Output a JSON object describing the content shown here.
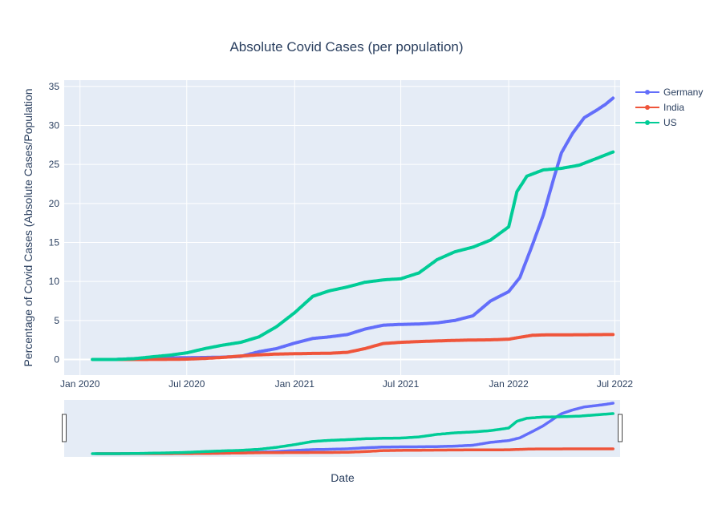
{
  "chart_data": {
    "type": "line",
    "title": "Absolute Covid Cases (per population)",
    "xlabel": "Date",
    "ylabel": "Percentage of Covid Cases (Absolute Cases/Population",
    "x_ticks": [
      "Jan 2020",
      "Jul 2020",
      "Jan 2021",
      "Jul 2021",
      "Jan 2022",
      "Jul 2022"
    ],
    "y_ticks": [
      "0",
      "5",
      "10",
      "15",
      "20",
      "25",
      "30",
      "35"
    ],
    "ylim": [
      -2,
      35.8
    ],
    "xlim": [
      "2019-12-05",
      "2022-07-10"
    ],
    "grid": true,
    "legend_position": "top-right",
    "rangeslider": true,
    "series": [
      {
        "name": "Germany",
        "color": "#636efa",
        "points": [
          [
            "2020-01-27",
            0
          ],
          [
            "2020-03-01",
            0
          ],
          [
            "2020-04-01",
            0.1
          ],
          [
            "2020-05-01",
            0.2
          ],
          [
            "2020-06-01",
            0.2
          ],
          [
            "2020-07-01",
            0.24
          ],
          [
            "2020-08-01",
            0.26
          ],
          [
            "2020-09-01",
            0.3
          ],
          [
            "2020-10-01",
            0.4
          ],
          [
            "2020-11-01",
            1.0
          ],
          [
            "2020-12-01",
            1.4
          ],
          [
            "2021-01-01",
            2.1
          ],
          [
            "2021-02-01",
            2.7
          ],
          [
            "2021-03-01",
            2.9
          ],
          [
            "2021-04-01",
            3.2
          ],
          [
            "2021-05-01",
            3.9
          ],
          [
            "2021-06-01",
            4.4
          ],
          [
            "2021-07-01",
            4.5
          ],
          [
            "2021-08-01",
            4.55
          ],
          [
            "2021-09-01",
            4.7
          ],
          [
            "2021-10-01",
            5.0
          ],
          [
            "2021-11-01",
            5.6
          ],
          [
            "2021-12-01",
            7.5
          ],
          [
            "2022-01-01",
            8.7
          ],
          [
            "2022-01-20",
            10.5
          ],
          [
            "2022-02-10",
            14.6
          ],
          [
            "2022-03-01",
            18.5
          ],
          [
            "2022-03-20",
            23.5
          ],
          [
            "2022-04-01",
            26.5
          ],
          [
            "2022-04-20",
            29.0
          ],
          [
            "2022-05-10",
            31.0
          ],
          [
            "2022-06-01",
            32.0
          ],
          [
            "2022-06-15",
            32.7
          ],
          [
            "2022-06-28",
            33.5
          ]
        ]
      },
      {
        "name": "India",
        "color": "#ef553b",
        "points": [
          [
            "2020-01-30",
            0
          ],
          [
            "2020-04-01",
            0
          ],
          [
            "2020-06-01",
            0.02
          ],
          [
            "2020-07-01",
            0.05
          ],
          [
            "2020-08-01",
            0.14
          ],
          [
            "2020-09-01",
            0.27
          ],
          [
            "2020-10-01",
            0.45
          ],
          [
            "2020-11-01",
            0.6
          ],
          [
            "2020-12-01",
            0.7
          ],
          [
            "2021-01-01",
            0.74
          ],
          [
            "2021-02-01",
            0.78
          ],
          [
            "2021-03-01",
            0.8
          ],
          [
            "2021-04-01",
            0.92
          ],
          [
            "2021-05-01",
            1.4
          ],
          [
            "2021-06-01",
            2.05
          ],
          [
            "2021-07-01",
            2.2
          ],
          [
            "2021-08-01",
            2.3
          ],
          [
            "2021-09-01",
            2.38
          ],
          [
            "2021-10-01",
            2.45
          ],
          [
            "2021-11-01",
            2.5
          ],
          [
            "2021-12-01",
            2.52
          ],
          [
            "2022-01-01",
            2.6
          ],
          [
            "2022-01-20",
            2.85
          ],
          [
            "2022-02-10",
            3.1
          ],
          [
            "2022-03-01",
            3.15
          ],
          [
            "2022-06-28",
            3.2
          ]
        ]
      },
      {
        "name": "US",
        "color": "#00cc96",
        "points": [
          [
            "2020-01-22",
            0
          ],
          [
            "2020-03-01",
            0
          ],
          [
            "2020-04-01",
            0.1
          ],
          [
            "2020-05-01",
            0.33
          ],
          [
            "2020-06-01",
            0.55
          ],
          [
            "2020-07-01",
            0.85
          ],
          [
            "2020-08-01",
            1.4
          ],
          [
            "2020-09-01",
            1.85
          ],
          [
            "2020-10-01",
            2.2
          ],
          [
            "2020-11-01",
            2.9
          ],
          [
            "2020-12-01",
            4.2
          ],
          [
            "2021-01-01",
            6.0
          ],
          [
            "2021-02-01",
            8.1
          ],
          [
            "2021-03-01",
            8.8
          ],
          [
            "2021-04-01",
            9.3
          ],
          [
            "2021-05-01",
            9.9
          ],
          [
            "2021-06-01",
            10.2
          ],
          [
            "2021-07-01",
            10.35
          ],
          [
            "2021-08-01",
            11.1
          ],
          [
            "2021-09-01",
            12.8
          ],
          [
            "2021-10-01",
            13.8
          ],
          [
            "2021-11-01",
            14.4
          ],
          [
            "2021-12-01",
            15.3
          ],
          [
            "2022-01-01",
            17.0
          ],
          [
            "2022-01-15",
            21.5
          ],
          [
            "2022-02-01",
            23.5
          ],
          [
            "2022-03-01",
            24.3
          ],
          [
            "2022-04-01",
            24.5
          ],
          [
            "2022-05-01",
            24.9
          ],
          [
            "2022-06-01",
            25.8
          ],
          [
            "2022-06-28",
            26.6
          ]
        ]
      }
    ]
  }
}
